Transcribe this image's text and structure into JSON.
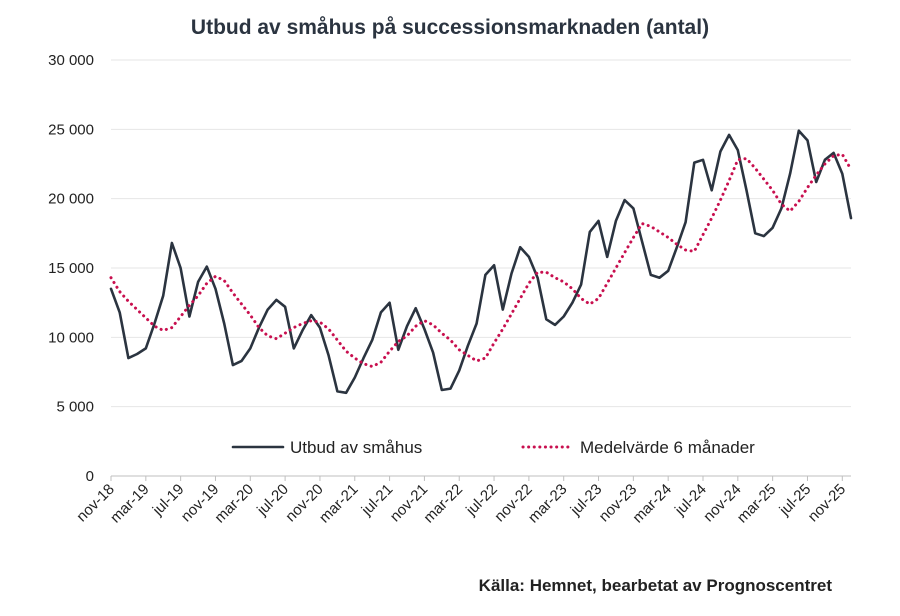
{
  "chart_data": {
    "type": "line",
    "title": "Utbud av småhus på successionsmarknaden (antal)",
    "source": "Källa: Hemnet, bearbetat av Prognoscentret",
    "ylim": [
      0,
      30000
    ],
    "yticks": [
      0,
      5000,
      10000,
      15000,
      20000,
      25000,
      30000
    ],
    "ytick_labels": [
      "0",
      "5 000",
      "10 000",
      "15 000",
      "20 000",
      "25 000",
      "30 000"
    ],
    "xtick_labels": [
      "nov-18",
      "mar-19",
      "jul-19",
      "nov-19",
      "mar-20",
      "jul-20",
      "nov-20",
      "mar-21",
      "jul-21",
      "nov-21",
      "mar-22",
      "jul-22",
      "nov-22",
      "mar-23",
      "jul-23",
      "nov-23",
      "mar-24",
      "jul-24",
      "nov-24",
      "mar-25",
      "jul-25",
      "nov-25"
    ],
    "grid": true,
    "legend_position": "bottom-inside",
    "x_unit": "month",
    "x_start": "2018-11",
    "series": [
      {
        "name": "Utbud av småhus",
        "style": "solid",
        "color": "#2b3440",
        "values": [
          13500,
          11800,
          8500,
          8800,
          9200,
          11000,
          13000,
          16800,
          15000,
          11500,
          14000,
          15100,
          13500,
          11000,
          8000,
          8300,
          9200,
          10700,
          12000,
          12700,
          12200,
          9200,
          10500,
          11600,
          10700,
          8700,
          6100,
          6000,
          7100,
          8500,
          9800,
          11800,
          12500,
          9100,
          10800,
          12100,
          10600,
          8900,
          6200,
          6300,
          7600,
          9400,
          11000,
          14500,
          15200,
          12000,
          14600,
          16500,
          15800,
          14300,
          11300,
          10900,
          11500,
          12500,
          13800,
          17600,
          18400,
          15800,
          18400,
          19900,
          19300,
          16900,
          14500,
          14300,
          14800,
          16500,
          18300,
          22600,
          22800,
          20600,
          23400,
          24600,
          23500,
          20600,
          17500,
          17300,
          17900,
          19300,
          21800,
          24900,
          24200,
          21200,
          22800,
          23300,
          21800,
          18600
        ]
      },
      {
        "name": "Medelvärde 6 månader",
        "style": "dotted",
        "color": "#c8104f",
        "values": [
          14300,
          13300,
          12600,
          12000,
          11400,
          10800,
          10500,
          10700,
          11500,
          12300,
          13000,
          13900,
          14400,
          14100,
          13200,
          12400,
          11600,
          10700,
          10100,
          9900,
          10300,
          10700,
          11000,
          11200,
          11100,
          10600,
          9800,
          9000,
          8500,
          8100,
          7900,
          8200,
          9000,
          9700,
          10100,
          10800,
          11200,
          10900,
          10300,
          9800,
          9100,
          8700,
          8300,
          8500,
          9600,
          10600,
          11700,
          12800,
          13900,
          14700,
          14700,
          14300,
          14000,
          13500,
          12800,
          12400,
          12800,
          13900,
          15000,
          16100,
          17200,
          18200,
          18000,
          17600,
          17200,
          16700,
          16300,
          16200,
          17400,
          18600,
          19900,
          21300,
          22800,
          22900,
          22200,
          21400,
          20600,
          19600,
          19100,
          19800,
          20800,
          21700,
          22500,
          23100,
          23200,
          22100
        ]
      }
    ]
  }
}
